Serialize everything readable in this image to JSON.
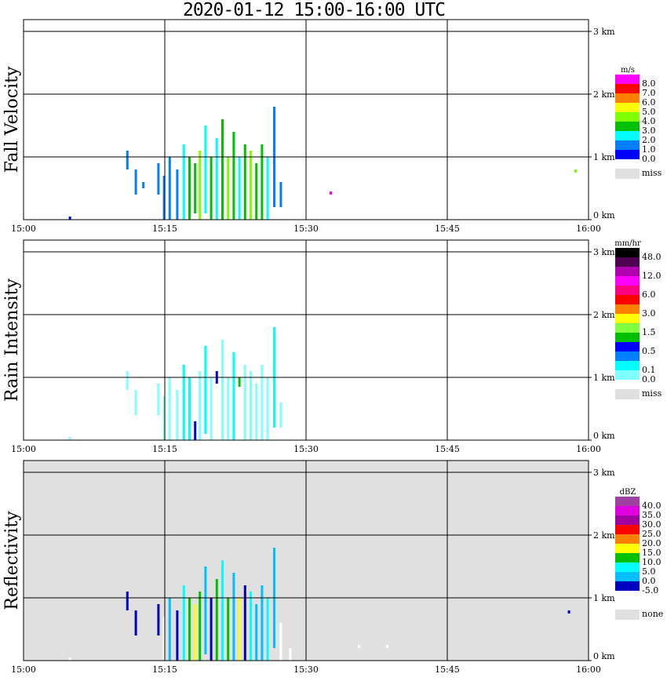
{
  "chart_data": {
    "type": "heatmap",
    "title": "2020-01-12  15:00-16:00 UTC",
    "x_ticks": [
      "15:00",
      "15:15",
      "15:30",
      "15:45",
      "16:00"
    ],
    "xlim_minutes": [
      0,
      60
    ],
    "y_ticks": [
      "0 km",
      "1 km",
      "2 km",
      "3 km"
    ],
    "ylim_km": [
      0,
      3.2
    ],
    "panels": [
      {
        "ylabel": "Fall Velocity",
        "units": "m/s",
        "background": "#ffffff",
        "colors": [
          "#0000ff",
          "#0080ff",
          "#00ffff",
          "#00c000",
          "#80ff00",
          "#ffff00",
          "#ff8000",
          "#ff0000",
          "#ff00ff"
        ],
        "labels": [
          "0.0",
          "1.0",
          "2.0",
          "3.0",
          "4.0",
          "5.0",
          "6.0",
          "7.0",
          "8.0"
        ],
        "missing_label": "miss",
        "echoes": [
          [
            4.8,
            0,
            0.05,
            0
          ],
          [
            10.9,
            0.8,
            1.1,
            1
          ],
          [
            11.8,
            0.4,
            0.8,
            1
          ],
          [
            12.6,
            0.5,
            0.6,
            1
          ],
          [
            14.2,
            0.4,
            0.9,
            1
          ],
          [
            14.8,
            0,
            0.7,
            1
          ],
          [
            15.4,
            0,
            1.0,
            1
          ],
          [
            16.2,
            0,
            0.8,
            1
          ],
          [
            16.9,
            0,
            1.2,
            2
          ],
          [
            17.5,
            0,
            1.0,
            3
          ],
          [
            18.1,
            0.1,
            0.9,
            3
          ],
          [
            18.6,
            0,
            1.1,
            4
          ],
          [
            19.2,
            0.1,
            1.5,
            2
          ],
          [
            19.8,
            0,
            1.0,
            3
          ],
          [
            20.4,
            0,
            1.3,
            2
          ],
          [
            21.0,
            0,
            1.6,
            3
          ],
          [
            21.6,
            0,
            1.0,
            4
          ],
          [
            22.2,
            0,
            1.4,
            3
          ],
          [
            22.8,
            0,
            1.0,
            2
          ],
          [
            23.4,
            0,
            1.2,
            3
          ],
          [
            24.0,
            0,
            1.1,
            4
          ],
          [
            24.6,
            0,
            0.9,
            3
          ],
          [
            25.2,
            0,
            1.2,
            3
          ],
          [
            25.8,
            0,
            1.0,
            2
          ],
          [
            26.5,
            0.2,
            1.8,
            1
          ],
          [
            27.2,
            0.2,
            0.6,
            1
          ],
          [
            32.5,
            0.4,
            0.45,
            8
          ],
          [
            58.5,
            0.75,
            0.8,
            4
          ]
        ]
      },
      {
        "ylabel": "Rain Intensity",
        "units": "mm/hr",
        "background": "#ffffff",
        "colors": [
          "#80ffff",
          "#00ffff",
          "#0080ff",
          "#0000ff",
          "#00c000",
          "#80ff40",
          "#ffff00",
          "#ff8000",
          "#ff0000",
          "#ff0080",
          "#ff00ff",
          "#b000b0",
          "#500050",
          "#000000"
        ],
        "labels": [
          "0.0",
          "0.1",
          "",
          "0.5",
          "",
          "1.5",
          "",
          "3.0",
          "",
          "6.0",
          "",
          "12.0",
          "",
          "48.0"
        ],
        "missing_label": "miss",
        "echoes": [
          [
            4.8,
            0,
            0.05,
            0
          ],
          [
            10.9,
            0.8,
            1.1,
            0
          ],
          [
            11.8,
            0.4,
            0.8,
            0
          ],
          [
            14.2,
            0.4,
            0.9,
            0
          ],
          [
            14.8,
            0,
            0.7,
            0
          ],
          [
            15.4,
            0,
            1.0,
            0
          ],
          [
            16.2,
            0,
            0.8,
            0
          ],
          [
            16.9,
            0,
            1.2,
            1
          ],
          [
            17.5,
            0,
            1.0,
            1
          ],
          [
            18.1,
            0,
            0.3,
            3
          ],
          [
            18.6,
            0,
            1.1,
            0
          ],
          [
            19.2,
            0.1,
            1.5,
            1
          ],
          [
            19.8,
            0,
            1.0,
            0
          ],
          [
            20.4,
            0.9,
            1.1,
            3
          ],
          [
            21.0,
            0,
            1.6,
            0
          ],
          [
            21.6,
            0,
            1.0,
            0
          ],
          [
            22.2,
            0,
            1.4,
            1
          ],
          [
            22.8,
            0.85,
            1.0,
            4
          ],
          [
            23.4,
            0,
            1.2,
            0
          ],
          [
            24.0,
            0,
            1.1,
            0
          ],
          [
            24.6,
            0,
            0.9,
            0
          ],
          [
            25.2,
            0,
            1.2,
            0
          ],
          [
            25.8,
            0,
            1.0,
            0
          ],
          [
            26.5,
            0.2,
            1.8,
            1
          ],
          [
            27.2,
            0.2,
            0.6,
            0
          ]
        ]
      },
      {
        "ylabel": "Reflectivity",
        "units": "dBZ",
        "background": "#e0e0e0",
        "colors": [
          "#ffffff",
          "#0000c0",
          "#00c0ff",
          "#00ffff",
          "#00c000",
          "#ffff00",
          "#ff8000",
          "#ff0000",
          "#a000a0",
          "#e000e0",
          "#a040a0"
        ],
        "labels": [
          "",
          "-5.0",
          "0.0",
          "5.0",
          "10.0",
          "15.0",
          "20.0",
          "25.0",
          "30.0",
          "35.0",
          "40.0"
        ],
        "missing_label": "none",
        "echoes": [
          [
            4.8,
            0,
            0.05,
            0
          ],
          [
            10.9,
            0.8,
            1.1,
            1
          ],
          [
            11.8,
            0.4,
            0.8,
            1
          ],
          [
            14.2,
            0.4,
            0.9,
            1
          ],
          [
            14.8,
            0,
            0.7,
            0
          ],
          [
            15.4,
            0,
            1.0,
            2
          ],
          [
            16.2,
            0,
            0.8,
            1
          ],
          [
            16.9,
            0,
            1.2,
            3
          ],
          [
            17.5,
            0,
            1.0,
            4
          ],
          [
            18.1,
            0,
            0.9,
            5
          ],
          [
            18.6,
            0,
            1.1,
            4
          ],
          [
            19.2,
            0.1,
            1.5,
            2
          ],
          [
            19.8,
            0,
            1.0,
            1
          ],
          [
            20.4,
            0,
            1.3,
            4
          ],
          [
            21.0,
            0,
            1.6,
            3
          ],
          [
            21.6,
            0,
            1.0,
            4
          ],
          [
            22.2,
            0,
            1.4,
            2
          ],
          [
            22.8,
            0,
            1.0,
            5
          ],
          [
            23.4,
            0,
            1.2,
            1
          ],
          [
            24.0,
            0,
            1.1,
            3
          ],
          [
            24.6,
            0,
            0.9,
            2
          ],
          [
            25.2,
            0,
            1.2,
            2
          ],
          [
            25.8,
            0,
            1.0,
            3
          ],
          [
            26.5,
            0.2,
            1.8,
            2
          ],
          [
            27.2,
            0,
            0.6,
            0
          ],
          [
            28.2,
            0,
            0.2,
            0
          ],
          [
            35.5,
            0.2,
            0.25,
            0
          ],
          [
            38.5,
            0.2,
            0.25,
            0
          ],
          [
            57.8,
            0.75,
            0.8,
            1
          ]
        ]
      }
    ]
  }
}
